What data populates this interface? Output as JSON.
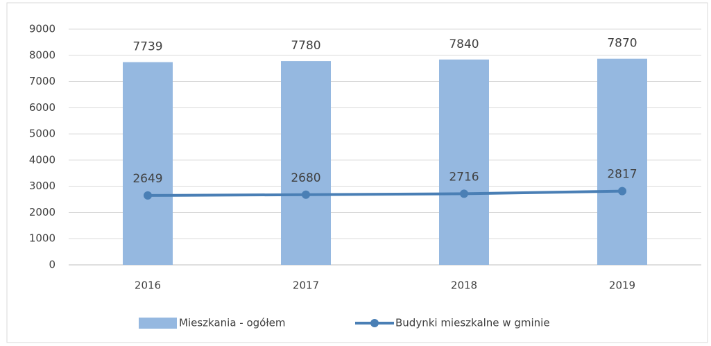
{
  "chart_data": {
    "type": "combo",
    "categories": [
      "2016",
      "2017",
      "2018",
      "2019"
    ],
    "series": [
      {
        "name": "Mieszkania - ogółem",
        "type": "bar",
        "color": "#95b8e0",
        "values": [
          7739,
          7780,
          7840,
          7870
        ]
      },
      {
        "name": "Budynki mieszkalne w gminie",
        "type": "line",
        "color": "#4a7fb5",
        "values": [
          2649,
          2680,
          2716,
          2817
        ]
      }
    ],
    "ylim": [
      0,
      9000
    ],
    "yticks": [
      0,
      1000,
      2000,
      3000,
      4000,
      5000,
      6000,
      7000,
      8000,
      9000
    ],
    "grid": true,
    "legend": "bottom"
  }
}
